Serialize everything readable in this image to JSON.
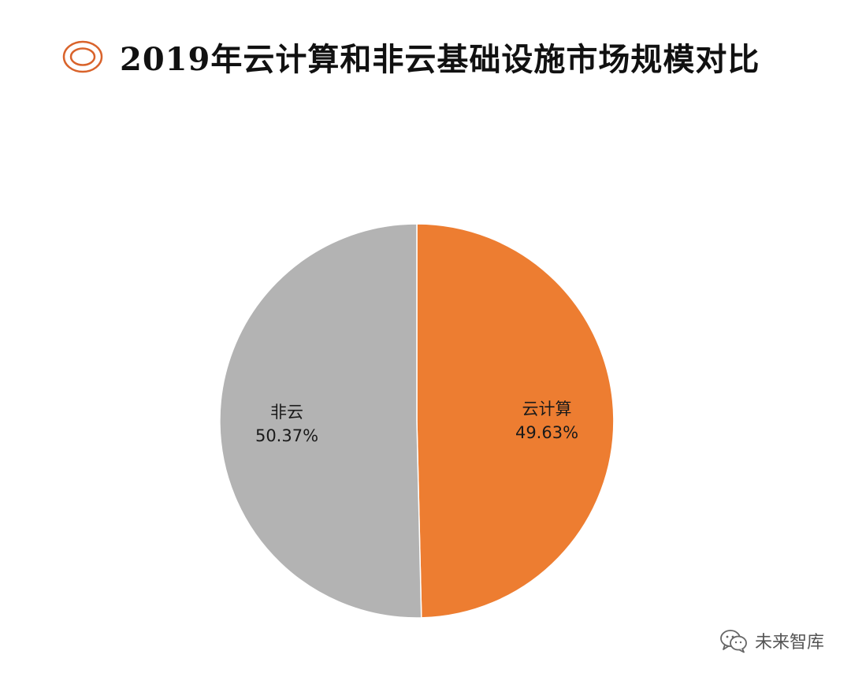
{
  "title": "2019年云计算和非云基础设施市场规模对比",
  "title_icon": "concentric-circle-icon",
  "colors": {
    "accent": "#ed7d31",
    "grey": "#b3b3b3",
    "title_icon": "#d9632b"
  },
  "chart_data": {
    "type": "pie",
    "title": "2019年云计算和非云基础设施市场规模对比",
    "slices": [
      {
        "label": "云计算",
        "value": 49.63,
        "display": "49.63%",
        "color": "#ed7d31"
      },
      {
        "label": "非云",
        "value": 50.37,
        "display": "50.37%",
        "color": "#b3b3b3"
      }
    ],
    "start": "12 o'clock",
    "direction": "clockwise",
    "legend": "none"
  },
  "watermark": {
    "text": "未来智库",
    "icon": "wechat-icon"
  }
}
